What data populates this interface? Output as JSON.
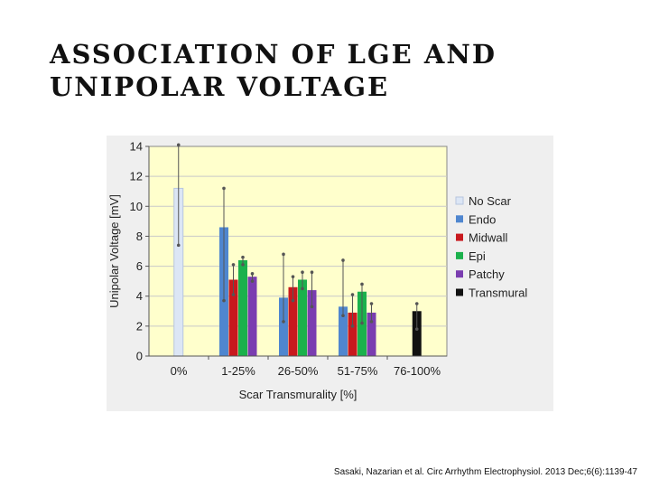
{
  "slide": {
    "title_line1": "ASSOCIATION OF LGE AND",
    "title_line2": "UNIPOLAR VOLTAGE",
    "citation": "Sasaki, Nazarian et al. Circ Arrhythm Electrophysiol. 2013 Dec;6(6):1139-47"
  },
  "colors": {
    "plot_background": "#FFFFCC",
    "axis": "#555555"
  },
  "chart_data": {
    "type": "bar",
    "title": "",
    "xlabel": "Scar Transmurality  [%]",
    "ylabel": "Unipolar Voltage [mV]",
    "ylim": [
      0,
      14
    ],
    "yticks": [
      0,
      2,
      4,
      6,
      8,
      10,
      12,
      14
    ],
    "grid": true,
    "legend_position": "right",
    "categories": [
      "0%",
      "1-25%",
      "26-50%",
      "51-75%",
      "76-100%"
    ],
    "series": [
      {
        "name": "No Scar",
        "color": "#DCE6F5",
        "values": [
          11.2,
          null,
          null,
          null,
          null
        ],
        "err_low": [
          7.4,
          null,
          null,
          null,
          null
        ],
        "err_high": [
          14.1,
          null,
          null,
          null,
          null
        ]
      },
      {
        "name": "Endo",
        "color": "#4F86CF",
        "values": [
          null,
          8.6,
          3.9,
          3.3,
          null
        ],
        "err_low": [
          null,
          3.7,
          2.3,
          2.7,
          null
        ],
        "err_high": [
          null,
          11.2,
          6.8,
          6.4,
          null
        ]
      },
      {
        "name": "Midwall",
        "color": "#C8191E",
        "values": [
          null,
          5.1,
          4.6,
          2.9,
          null
        ],
        "err_low": [
          null,
          4.1,
          3.7,
          2.0,
          null
        ],
        "err_high": [
          null,
          6.1,
          5.3,
          4.1,
          null
        ]
      },
      {
        "name": "Epi",
        "color": "#1BB14C",
        "values": [
          null,
          6.4,
          5.1,
          4.3,
          null
        ],
        "err_low": [
          null,
          6.1,
          4.5,
          2.2,
          null
        ],
        "err_high": [
          null,
          6.6,
          5.6,
          4.8,
          null
        ]
      },
      {
        "name": "Patchy",
        "color": "#7A3DB0",
        "values": [
          null,
          5.3,
          4.4,
          2.9,
          null
        ],
        "err_low": [
          null,
          5.0,
          3.3,
          2.3,
          null
        ],
        "err_high": [
          null,
          5.5,
          5.6,
          3.5,
          null
        ]
      },
      {
        "name": "Transmural",
        "color": "#111111",
        "values": [
          null,
          null,
          null,
          null,
          3.0
        ],
        "err_low": [
          null,
          null,
          null,
          null,
          1.8
        ],
        "err_high": [
          null,
          null,
          null,
          null,
          3.5
        ]
      }
    ]
  }
}
